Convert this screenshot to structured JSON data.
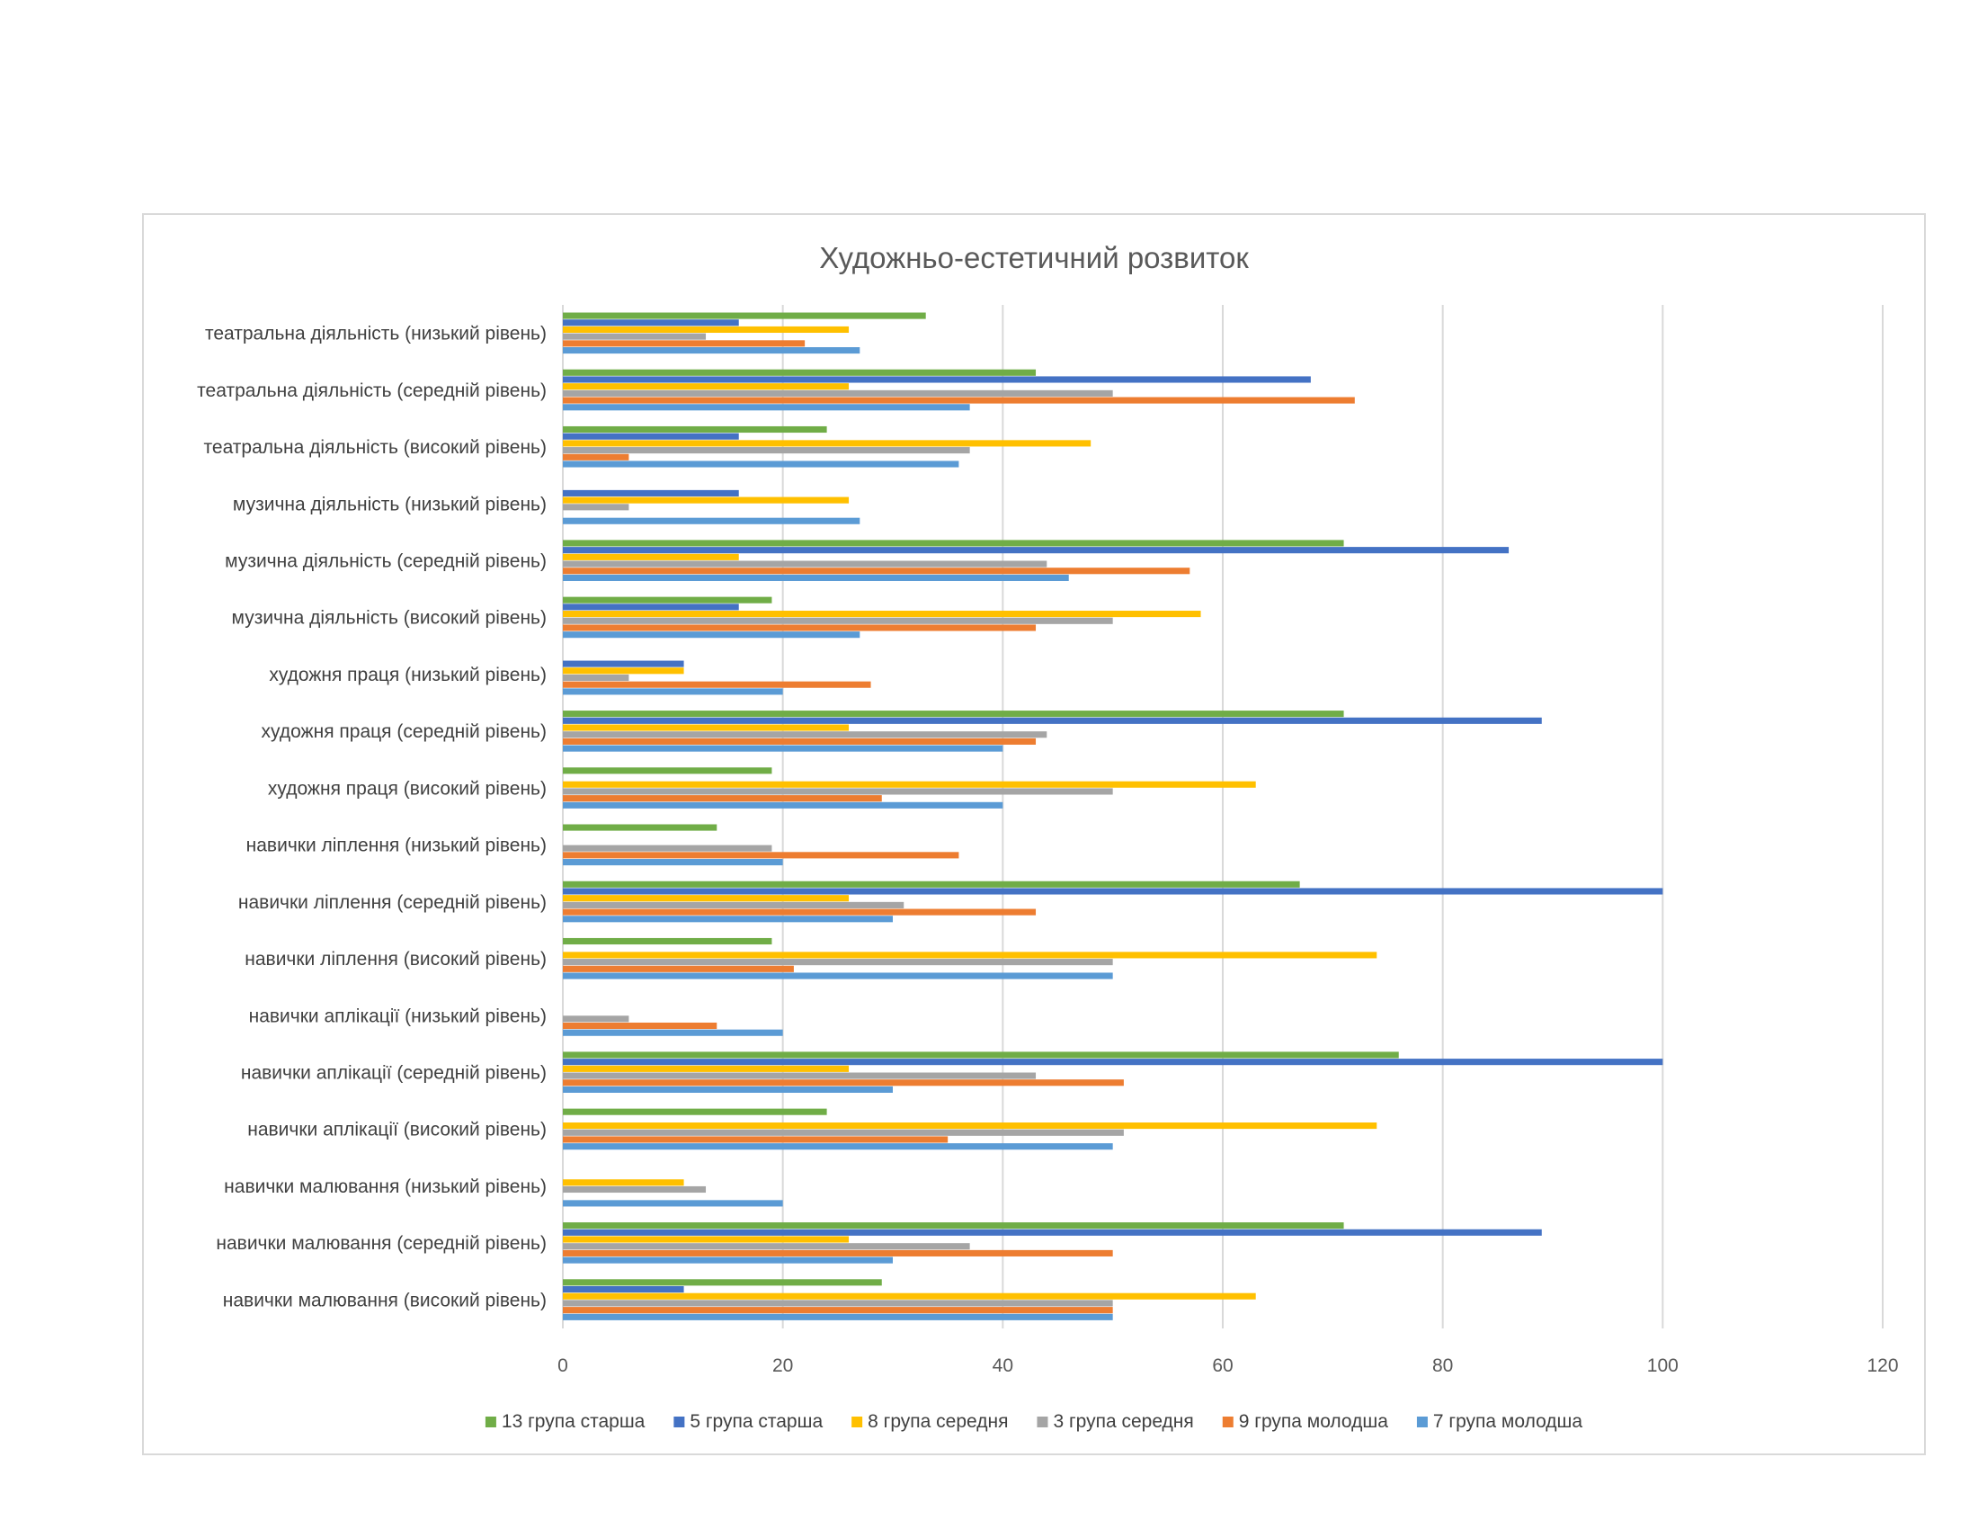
{
  "chart_data": {
    "type": "bar",
    "orientation": "horizontal",
    "title": "Художньо-естетичний розвиток",
    "xlabel": "",
    "ylabel": "",
    "xlim": [
      0,
      120
    ],
    "x_ticks": [
      0,
      20,
      40,
      60,
      80,
      100,
      120
    ],
    "grid": true,
    "legend_position": "bottom",
    "categories": [
      "театральна діяльність (низький рівень)",
      "театральна діяльність (середній рівень)",
      "театральна діяльність (високий рівень)",
      "музична діяльність (низький рівень)",
      "музична діяльність (середній рівень)",
      "музична діяльність (високий рівень)",
      "художня праця (низький рівень)",
      "художня праця (середній рівень)",
      "художня праця (високий рівень)",
      "навички ліплення (низький рівень)",
      "навички ліплення (середній рівень)",
      "навички ліплення (високий рівень)",
      "навички аплікації (низький рівень)",
      "навички аплікації (середній рівень)",
      "навички аплікації (високий рівень)",
      "навички малювання (низький рівень)",
      "навички малювання (середній рівень)",
      "навички малювання (високий рівень)"
    ],
    "series": [
      {
        "name": "13 група старша",
        "color": "#70ad47",
        "values": [
          33,
          43,
          24,
          0,
          71,
          19,
          0,
          71,
          19,
          14,
          67,
          19,
          0,
          76,
          24,
          0,
          71,
          29
        ]
      },
      {
        "name": "5 група старша",
        "color": "#4472c4",
        "values": [
          16,
          68,
          16,
          16,
          86,
          16,
          11,
          89,
          0,
          0,
          100,
          0,
          0,
          100,
          0,
          0,
          89,
          11
        ]
      },
      {
        "name": "8 група середня",
        "color": "#ffc000",
        "values": [
          26,
          26,
          48,
          26,
          16,
          58,
          11,
          26,
          63,
          0,
          26,
          74,
          0,
          26,
          74,
          11,
          26,
          63
        ]
      },
      {
        "name": "3 група середня",
        "color": "#a5a5a5",
        "values": [
          13,
          50,
          37,
          6,
          44,
          50,
          6,
          44,
          50,
          19,
          31,
          50,
          6,
          43,
          51,
          13,
          37,
          50
        ]
      },
      {
        "name": "9 група молодша",
        "color": "#ed7d31",
        "values": [
          22,
          72,
          6,
          0,
          57,
          43,
          28,
          43,
          29,
          36,
          43,
          21,
          14,
          51,
          35,
          0,
          50,
          50
        ]
      },
      {
        "name": "7 група молодша",
        "color": "#5b9bd5",
        "values": [
          27,
          37,
          36,
          27,
          46,
          27,
          20,
          40,
          40,
          20,
          30,
          50,
          20,
          30,
          50,
          20,
          30,
          50
        ]
      }
    ]
  }
}
